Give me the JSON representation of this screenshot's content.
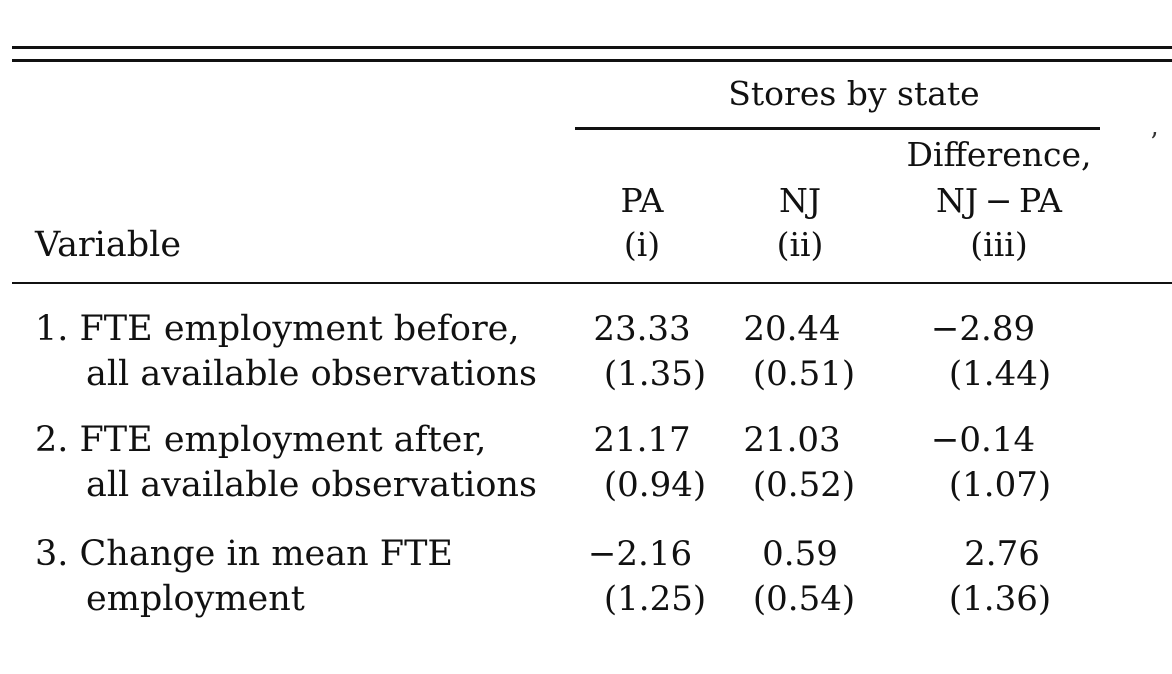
{
  "table": {
    "spanner": "Stores by state",
    "variable_header": "Variable",
    "columns": [
      {
        "name": "PA",
        "index": "(i)"
      },
      {
        "name": "NJ",
        "index": "(ii)"
      },
      {
        "name_line1": "Difference,",
        "name_line2": "NJ − PA",
        "index": "(iii)"
      }
    ],
    "rows": [
      {
        "line1": "1. FTE employment before,",
        "line2": "all available observations",
        "pa": "23.33",
        "pa_se": "(1.35)",
        "nj": "20.44",
        "nj_se": "(0.51)",
        "diff": "−2.89",
        "diff_se": "(1.44)"
      },
      {
        "line1": "2. FTE employment after,",
        "line2": "all available observations",
        "pa": "21.17",
        "pa_se": "(0.94)",
        "nj": "21.03",
        "nj_se": "(0.52)",
        "diff": "−0.14",
        "diff_se": "(1.07)"
      },
      {
        "line1": "3. Change in mean FTE",
        "line2": "employment",
        "pa": "−2.16",
        "pa_se": "(1.25)",
        "nj": "0.59",
        "nj_se": "(0.54)",
        "diff": "2.76",
        "diff_se": "(1.36)"
      }
    ]
  },
  "edge_glyph": "’"
}
